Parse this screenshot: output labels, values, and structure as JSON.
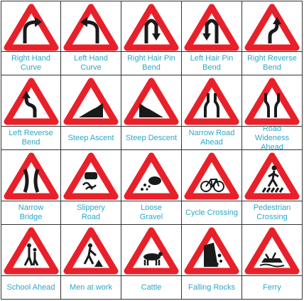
{
  "colors": {
    "sign_red": "#e8202a",
    "sign_white": "#ffffff",
    "symbol_black": "#1a1a1a",
    "caption_text": "#2aa7c8",
    "grid_lines": "#333333"
  },
  "signs": [
    {
      "id": "right-hand-curve",
      "icon": "right-hand-curve-icon",
      "lines": [
        "Right Hand",
        "Curve"
      ]
    },
    {
      "id": "left-hand-curve",
      "icon": "left-hand-curve-icon",
      "lines": [
        "Left Hand",
        "Curve"
      ]
    },
    {
      "id": "right-hair-pin-bend",
      "icon": "right-hair-pin-bend-icon",
      "lines": [
        "Right Hair Pin",
        "Bend"
      ]
    },
    {
      "id": "left-hair-pin-bend",
      "icon": "left-hair-pin-bend-icon",
      "lines": [
        "Left Hair Pin",
        "Bend"
      ]
    },
    {
      "id": "right-reverse-bend",
      "icon": "right-reverse-bend-icon",
      "lines": [
        "Right Reverse",
        "Bend"
      ]
    },
    {
      "id": "left-reverse-bend",
      "icon": "left-reverse-bend-icon",
      "lines": [
        "Left Reverse",
        "Bend"
      ]
    },
    {
      "id": "steep-ascent",
      "icon": "steep-ascent-icon",
      "lines": [
        "Steep Ascent"
      ]
    },
    {
      "id": "steep-descent",
      "icon": "steep-descent-icon",
      "lines": [
        "Steep Descent"
      ]
    },
    {
      "id": "narrow-road-ahead",
      "icon": "narrow-road-ahead-icon",
      "lines": [
        "Narrow Road",
        "Ahead"
      ]
    },
    {
      "id": "road-wideness-ahead",
      "icon": "road-wideness-ahead-icon",
      "lines": [
        "Road",
        "Wideness",
        "Ahead"
      ]
    },
    {
      "id": "narrow-bridge",
      "icon": "narrow-bridge-icon",
      "lines": [
        "Narrow",
        "Bridge"
      ]
    },
    {
      "id": "slippery-road",
      "icon": "slippery-road-icon",
      "lines": [
        "Slippery",
        "Road"
      ]
    },
    {
      "id": "loose-gravel",
      "icon": "loose-gravel-icon",
      "lines": [
        "Loose",
        "Gravel"
      ]
    },
    {
      "id": "cycle-crossing",
      "icon": "cycle-crossing-icon",
      "lines": [
        "Cycle Crossing"
      ]
    },
    {
      "id": "pedestrian-crossing",
      "icon": "pedestrian-crossing-icon",
      "lines": [
        "Pedestrian",
        "Crossing"
      ]
    },
    {
      "id": "school-ahead",
      "icon": "school-ahead-icon",
      "lines": [
        "School Ahead"
      ]
    },
    {
      "id": "men-at-work",
      "icon": "men-at-work-icon",
      "lines": [
        "Men at work"
      ]
    },
    {
      "id": "cattle",
      "icon": "cattle-icon",
      "lines": [
        "Cattle"
      ]
    },
    {
      "id": "falling-rocks",
      "icon": "falling-rocks-icon",
      "lines": [
        "Falling Rocks"
      ]
    },
    {
      "id": "ferry",
      "icon": "ferry-icon",
      "lines": [
        "Ferry"
      ]
    }
  ]
}
